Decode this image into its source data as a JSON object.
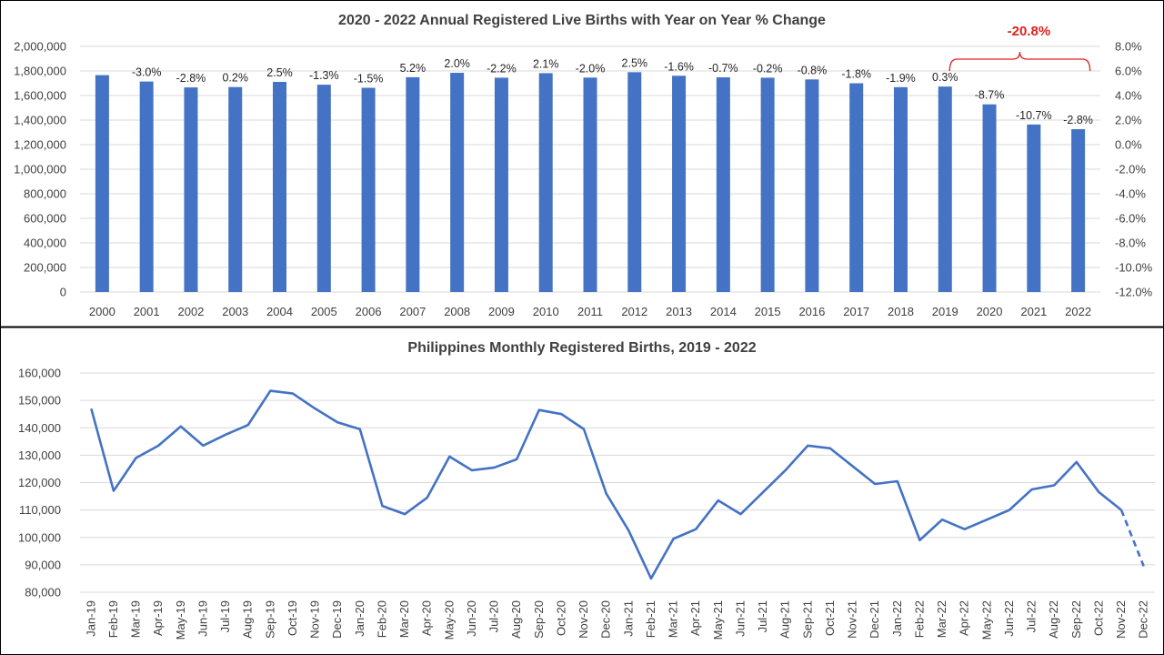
{
  "colors": {
    "bar": "#4472c4",
    "line": "#4472c4",
    "callout": "#e02020",
    "grid": "#d9d9d9",
    "text": "#404040",
    "divider": "#000000"
  },
  "chart_data": [
    {
      "type": "bar",
      "title": "2020 - 2022 Annual Registered Live Births with Year on Year % Change",
      "categories": [
        "2000",
        "2001",
        "2002",
        "2003",
        "2004",
        "2005",
        "2006",
        "2007",
        "2008",
        "2009",
        "2010",
        "2011",
        "2012",
        "2013",
        "2014",
        "2015",
        "2016",
        "2017",
        "2018",
        "2019",
        "2020",
        "2021",
        "2022"
      ],
      "values": [
        1766000,
        1714000,
        1666000,
        1669000,
        1711000,
        1688000,
        1663000,
        1749000,
        1785000,
        1745000,
        1782000,
        1746000,
        1790000,
        1761000,
        1748000,
        1745000,
        1731000,
        1700000,
        1668000,
        1673000,
        1528000,
        1364000,
        1326000
      ],
      "data_labels": [
        "",
        "-3.0%",
        "-2.8%",
        "0.2%",
        "2.5%",
        "-1.3%",
        "-1.5%",
        "5.2%",
        "2.0%",
        "-2.2%",
        "2.1%",
        "-2.0%",
        "2.5%",
        "-1.6%",
        "-0.7%",
        "-0.2%",
        "-0.8%",
        "-1.8%",
        "-1.9%",
        "0.3%",
        "-8.7%",
        "-10.7%",
        "-2.8%"
      ],
      "yticks": [
        "0",
        "200,000",
        "400,000",
        "600,000",
        "800,000",
        "1,000,000",
        "1,200,000",
        "1,400,000",
        "1,600,000",
        "1,800,000",
        "2,000,000"
      ],
      "ylim": [
        0,
        2000000
      ],
      "y2ticks": [
        "-12.0%",
        "-10.0%",
        "-8.0%",
        "-6.0%",
        "-4.0%",
        "-2.0%",
        "0.0%",
        "2.0%",
        "4.0%",
        "6.0%",
        "8.0%"
      ],
      "y2lim": [
        -12,
        8
      ],
      "callout": {
        "text": "-20.8%",
        "from": "2019",
        "to": "2022"
      },
      "grid": true,
      "legend": "none"
    },
    {
      "type": "line",
      "title": "Philippines Monthly Registered Births, 2019 - 2022",
      "categories": [
        "Jan-19",
        "Feb-19",
        "Mar-19",
        "Apr-19",
        "May-19",
        "Jun-19",
        "Jul-19",
        "Aug-19",
        "Sep-19",
        "Oct-19",
        "Nov-19",
        "Dec-19",
        "Jan-20",
        "Feb-20",
        "Mar-20",
        "Apr-20",
        "May-20",
        "Jun-20",
        "Jul-20",
        "Aug-20",
        "Sep-20",
        "Oct-20",
        "Nov-20",
        "Dec-20",
        "Jan-21",
        "Feb-21",
        "Mar-21",
        "Apr-21",
        "May-21",
        "Jun-21",
        "Jul-21",
        "Aug-21",
        "Sep-21",
        "Oct-21",
        "Nov-21",
        "Dec-21",
        "Jan-22",
        "Feb-22",
        "Mar-22",
        "Apr-22",
        "May-22",
        "Jun-22",
        "Jul-22",
        "Aug-22",
        "Sep-22",
        "Oct-22",
        "Nov-22",
        "Dec-22"
      ],
      "values": [
        147000,
        117000,
        129000,
        133500,
        140500,
        133500,
        137500,
        141000,
        153500,
        152500,
        147000,
        142000,
        139500,
        111500,
        108500,
        114500,
        129500,
        124500,
        125500,
        128500,
        146500,
        145000,
        139500,
        116000,
        102500,
        85000,
        99500,
        103000,
        113500,
        108500,
        116500,
        124500,
        133500,
        132500,
        126000,
        119500,
        120500,
        99000,
        106500,
        103000,
        106500,
        110000,
        117500,
        119000,
        127500,
        116500,
        110000,
        89500
      ],
      "projected_from_index": 46,
      "yticks": [
        "80,000",
        "90,000",
        "100,000",
        "110,000",
        "120,000",
        "130,000",
        "140,000",
        "150,000",
        "160,000"
      ],
      "ylim": [
        80000,
        160000
      ],
      "grid": true,
      "legend": "none"
    }
  ]
}
